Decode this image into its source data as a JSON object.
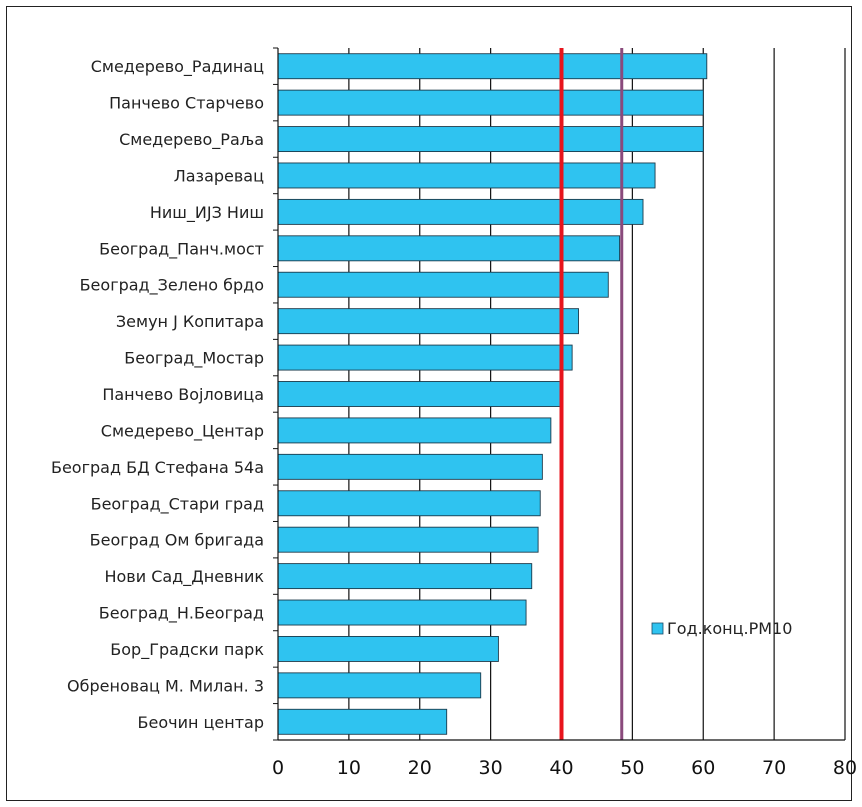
{
  "chart_data": {
    "type": "bar",
    "orientation": "horizontal",
    "categories": [
      "Смедерево_Радинац",
      "Панчево Старчево",
      "Смедерево_Раља",
      "Лазаревац",
      "Ниш_ИЈЗ Ниш",
      "Београд_Панч.мост",
      "Београд_Зелено брдо",
      "Земун Ј Копитара",
      "Београд_Мостар",
      "Панчево Војловица",
      "Смедерево_Центар",
      "Београд БД Стефана 54а",
      "Београд_Стари град",
      "Београд Ом бригада",
      "Нови Сад_Дневник",
      "Београд_Н.Београд",
      "Бор_Градски парк",
      "Обреновац М. Милан. 3",
      "Беочин центар"
    ],
    "series": [
      {
        "name": "Год.конц.PM10",
        "color": "#2fc3f0",
        "values": [
          60.5,
          60,
          60,
          53.2,
          51.5,
          48.2,
          46.6,
          42.4,
          41.5,
          40,
          38.5,
          37.3,
          37,
          36.7,
          35.8,
          35,
          31.1,
          28.6,
          23.8
        ]
      }
    ],
    "reference_lines": [
      {
        "value": 40,
        "color": "#e8141c"
      },
      {
        "value": 48.5,
        "color": "#8a4a7c"
      }
    ],
    "xlim": [
      0,
      80
    ],
    "xticks": [
      "0",
      "10",
      "20",
      "30",
      "40",
      "50",
      "60",
      "70",
      "80"
    ],
    "grid": "vertical major lines",
    "legend_position": "right-middle",
    "title": "",
    "xlabel": "",
    "ylabel": ""
  }
}
